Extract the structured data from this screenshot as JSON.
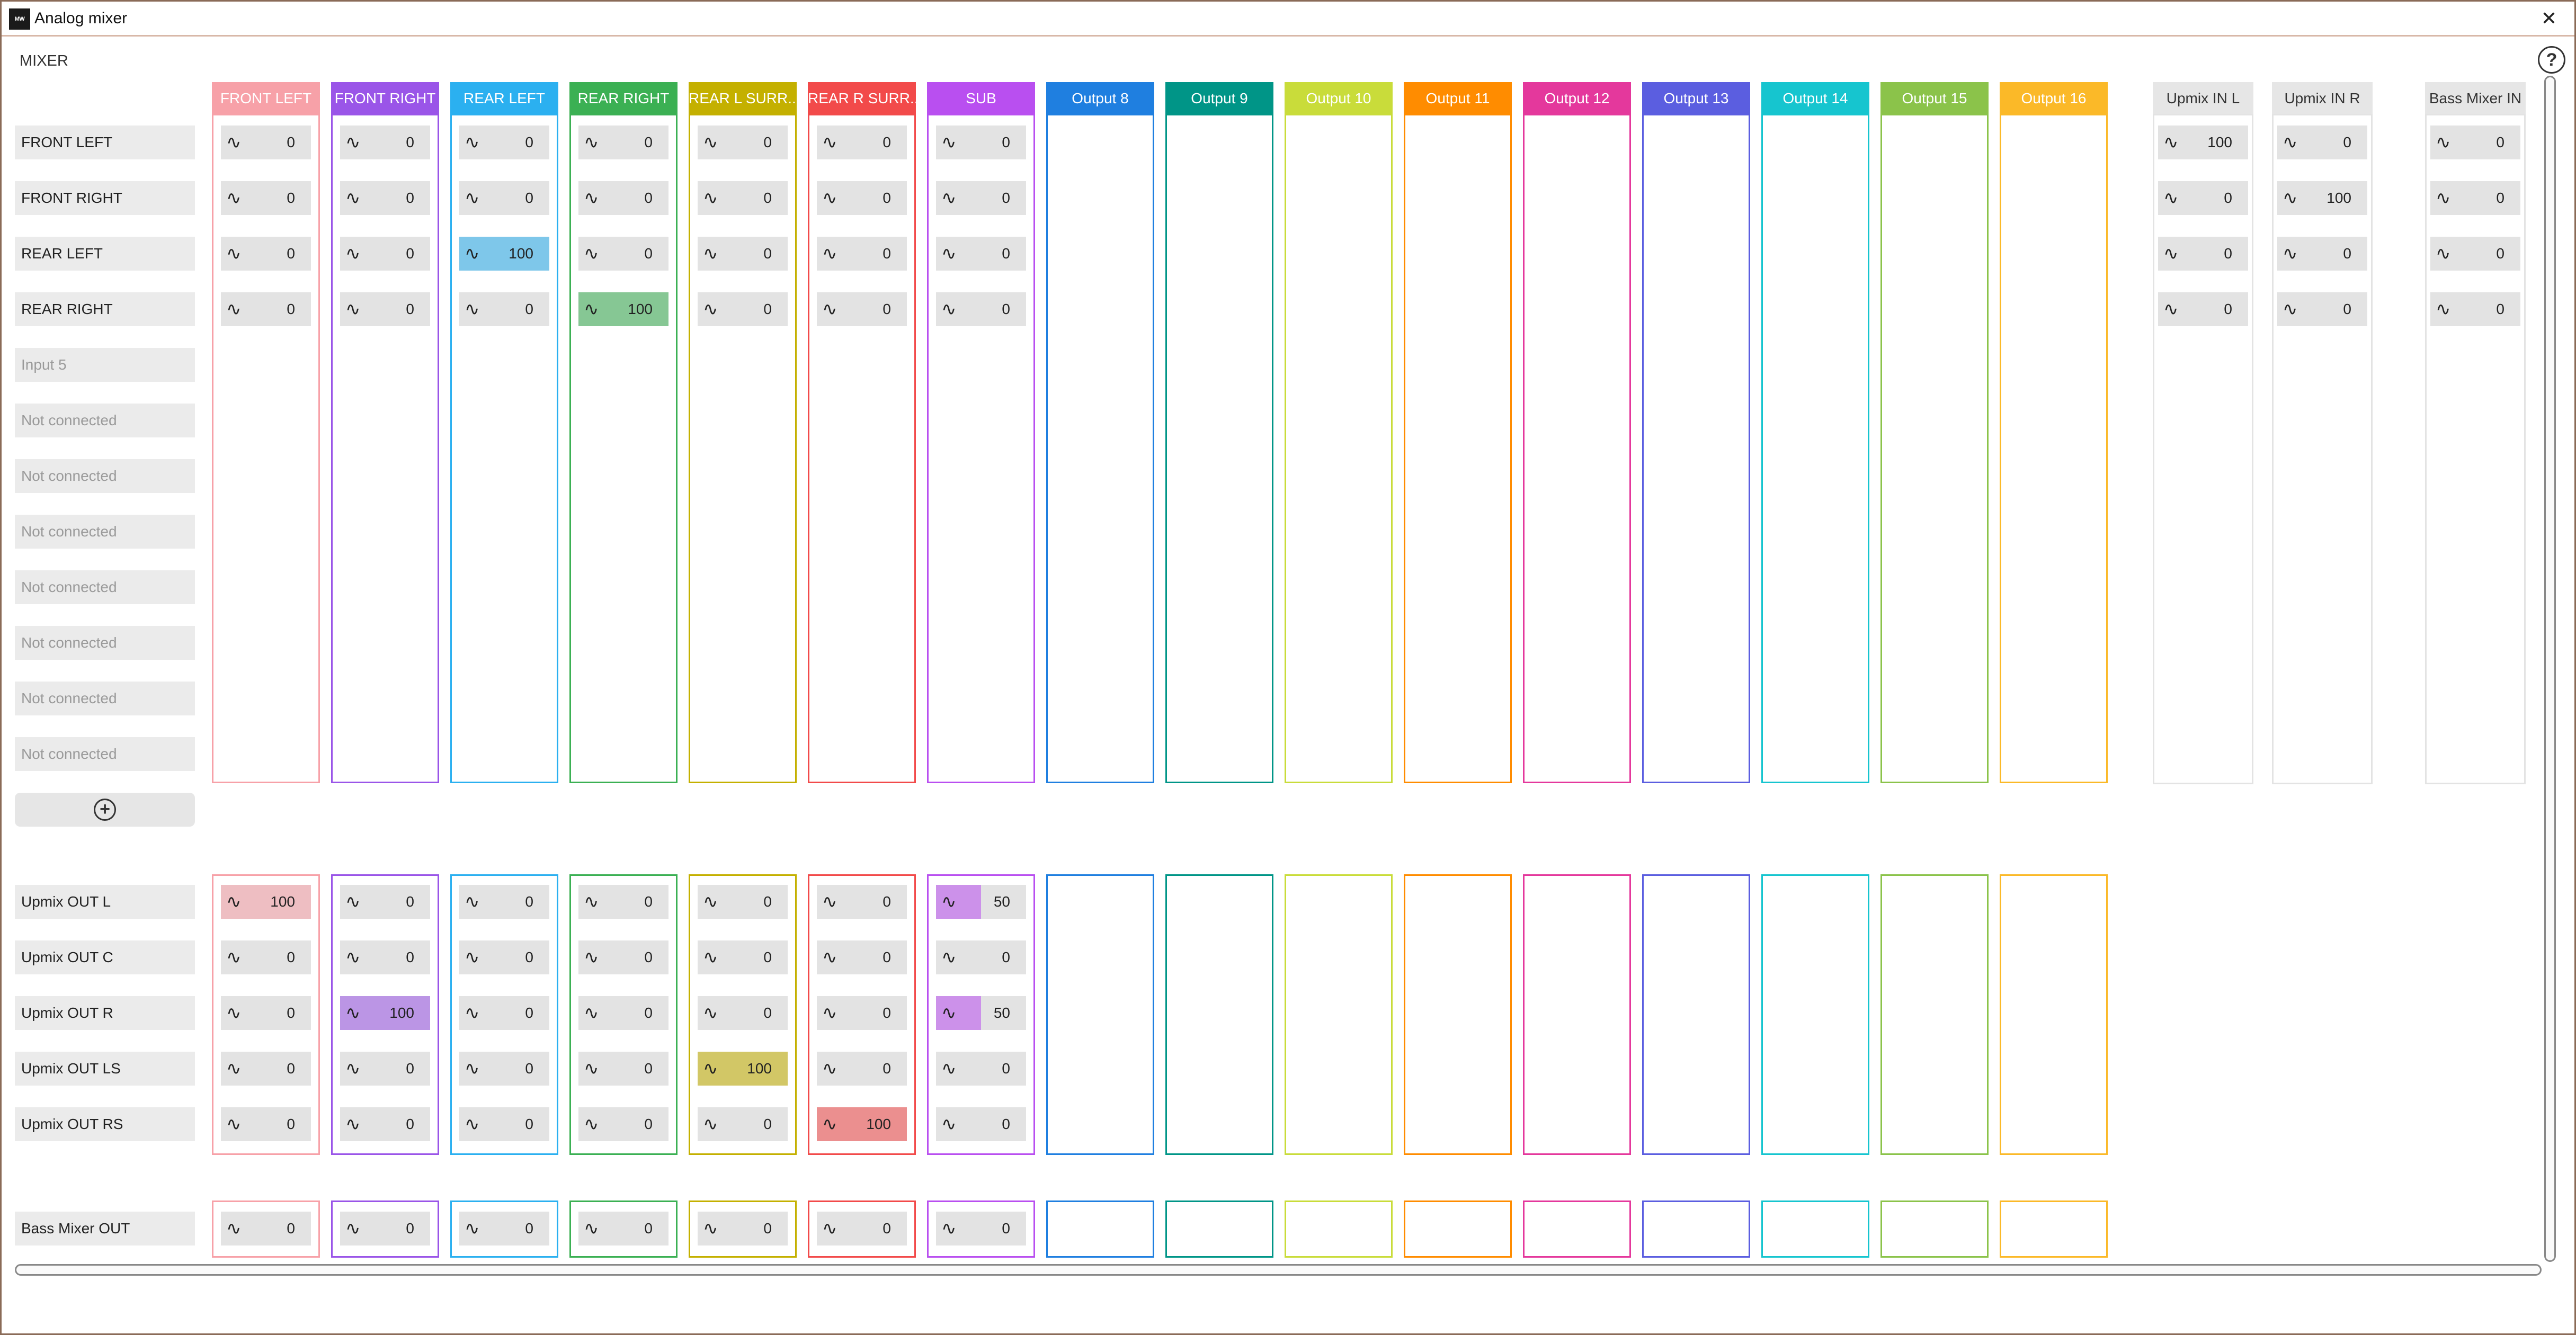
{
  "window": {
    "title": "Analog mixer",
    "logo_text": "MW",
    "close_glyph": "✕"
  },
  "section_title": "MIXER",
  "help_glyph": "?",
  "add_glyph": "+",
  "wave_glyph": "∿",
  "columns": [
    {
      "label": "FRONT LEFT",
      "color": "#f7a1a8",
      "text": "#ffffff"
    },
    {
      "label": "FRONT RIGHT",
      "color": "#9a55e8",
      "text": "#ffffff"
    },
    {
      "label": "REAR LEFT",
      "color": "#2bb0f0",
      "text": "#ffffff"
    },
    {
      "label": "REAR RIGHT",
      "color": "#3bb053",
      "text": "#ffffff"
    },
    {
      "label": "REAR L SURR...",
      "color": "#c4b000",
      "text": "#ffffff"
    },
    {
      "label": "REAR R SURR...",
      "color": "#f24a4a",
      "text": "#ffffff"
    },
    {
      "label": "SUB",
      "color": "#b94ff0",
      "text": "#ffffff"
    },
    {
      "label": "Output 8",
      "color": "#1f7fe0",
      "text": "#ffffff"
    },
    {
      "label": "Output 9",
      "color": "#009587",
      "text": "#ffffff"
    },
    {
      "label": "Output 10",
      "color": "#c9dc3a",
      "text": "#ffffff"
    },
    {
      "label": "Output 11",
      "color": "#ff8c00",
      "text": "#ffffff"
    },
    {
      "label": "Output 12",
      "color": "#e4389c",
      "text": "#ffffff"
    },
    {
      "label": "Output 13",
      "color": "#5b5ee0",
      "text": "#ffffff"
    },
    {
      "label": "Output 14",
      "color": "#16c5cf",
      "text": "#ffffff"
    },
    {
      "label": "Output 15",
      "color": "#8bc34a",
      "text": "#ffffff"
    },
    {
      "label": "Output 16",
      "color": "#fbb928",
      "text": "#ffffff"
    }
  ],
  "right_columns": [
    {
      "label": "Upmix IN L"
    },
    {
      "label": "Upmix IN R"
    },
    {
      "label": "Bass Mixer IN"
    }
  ],
  "input_rows": [
    {
      "label": "FRONT LEFT",
      "disabled": false
    },
    {
      "label": "FRONT RIGHT",
      "disabled": false
    },
    {
      "label": "REAR LEFT",
      "disabled": false
    },
    {
      "label": "REAR RIGHT",
      "disabled": false
    },
    {
      "label": "Input 5",
      "disabled": true
    },
    {
      "label": "Not connected",
      "disabled": true
    },
    {
      "label": "Not connected",
      "disabled": true
    },
    {
      "label": "Not connected",
      "disabled": true
    },
    {
      "label": "Not connected",
      "disabled": true
    },
    {
      "label": "Not connected",
      "disabled": true
    },
    {
      "label": "Not connected",
      "disabled": true
    },
    {
      "label": "Not connected",
      "disabled": true
    }
  ],
  "input_values": [
    [
      "0",
      "0",
      "0",
      "0",
      "0",
      "0",
      "0"
    ],
    [
      "0",
      "0",
      "0",
      "0",
      "0",
      "0",
      "0"
    ],
    [
      "0",
      "0",
      "100",
      "0",
      "0",
      "0",
      "0"
    ],
    [
      "0",
      "0",
      "0",
      "100",
      "0",
      "0",
      "0"
    ]
  ],
  "input_right_values": [
    [
      "100",
      "0",
      "0"
    ],
    [
      "0",
      "100",
      "0"
    ],
    [
      "0",
      "0",
      "0"
    ],
    [
      "0",
      "0",
      "0"
    ]
  ],
  "upmix_rows": [
    {
      "label": "Upmix OUT L"
    },
    {
      "label": "Upmix OUT C"
    },
    {
      "label": "Upmix OUT R"
    },
    {
      "label": "Upmix OUT LS"
    },
    {
      "label": "Upmix OUT RS"
    }
  ],
  "upmix_values": [
    [
      "100",
      "0",
      "0",
      "0",
      "0",
      "0",
      "50"
    ],
    [
      "0",
      "0",
      "0",
      "0",
      "0",
      "0",
      "0"
    ],
    [
      "0",
      "100",
      "0",
      "0",
      "0",
      "0",
      "50"
    ],
    [
      "0",
      "0",
      "0",
      "0",
      "100",
      "0",
      "0"
    ],
    [
      "0",
      "0",
      "0",
      "0",
      "0",
      "100",
      "0"
    ]
  ],
  "bass_row": {
    "label": "Bass Mixer OUT"
  },
  "bass_values": [
    "0",
    "0",
    "0",
    "0",
    "0",
    "0",
    "0"
  ]
}
